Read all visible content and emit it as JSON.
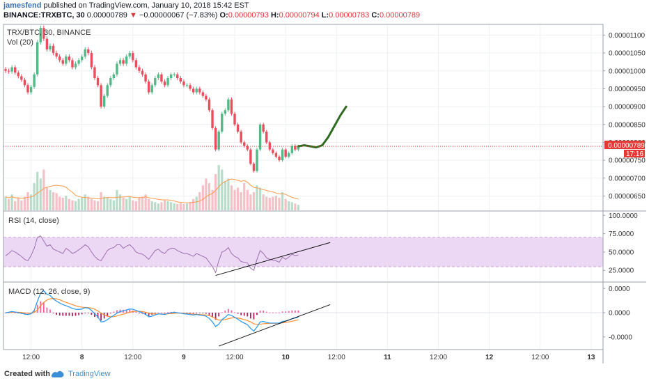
{
  "header": {
    "author": "jamesfend",
    "published_text": "published on TradingView.com, January 10, 2018 15:42 EST",
    "symbol": "BINANCE:TRXBTC, 30",
    "last": "0.00000789",
    "change_arrow": "▼",
    "change": "−0.00000067 (−7.83%)",
    "o_label": "O:",
    "o_val": "0.00000793",
    "h_label": "H:",
    "h_val": "0.00000794",
    "l_label": "L:",
    "l_val": "0.00000783",
    "c_label": "C:",
    "c_val": "0.00000789"
  },
  "chart_data": {
    "type": "candlestick",
    "pane_main": {
      "legend_symbol": "TRX/BTC, 30, BINANCE",
      "legend_volume": "Vol (20)",
      "y_ticks": [
        "0.00001100",
        "0.00001050",
        "0.00001000",
        "0.00000950",
        "0.00000900",
        "0.00000850",
        "0.00000800",
        "0.00000750",
        "0.00000700",
        "0.00000650"
      ],
      "y_tick_values": [
        1.1e-05,
        1.05e-05,
        1e-05,
        9.5e-06,
        9e-06,
        8.5e-06,
        8e-06,
        7.5e-06,
        7e-06,
        6.5e-06
      ],
      "ylim": [
        6.1e-06,
        1.13e-05
      ],
      "last_price_label": "0.00000789",
      "countdown_label": "17:16",
      "last_price": 7.89e-06,
      "closes": [
        1e-05,
        9.98e-06,
        1.01e-05,
        9.95e-06,
        9.85e-06,
        9.75e-06,
        9.6e-06,
        9.4e-06,
        9.55e-06,
        9.9e-06,
        1.08e-05,
        1.12e-05,
        1.09e-05,
        1.06e-05,
        1.07e-05,
        1.05e-05,
        1.04e-05,
        1.03e-05,
        1.02e-05,
        1.04e-05,
        1.03e-05,
        1.01e-05,
        1.02e-05,
        1.03e-05,
        1.04e-05,
        1.06e-05,
        1.05e-05,
        1.01e-05,
        9.8e-06,
        9.6e-06,
        9e-06,
        9.3e-06,
        9.6e-06,
        9.8e-06,
        9.9e-06,
        1.02e-05,
        1.03e-05,
        1.02e-05,
        1.04e-05,
        1.05e-05,
        1.03e-05,
        1.01e-05,
        1e-05,
        9.9e-06,
        9.7e-06,
        9.4e-06,
        9.6e-06,
        9.8e-06,
        9.9e-06,
        9.7e-06,
        9.6e-06,
        9.8e-06,
        9.9e-06,
        9.9e-06,
        9.8e-06,
        9.7e-06,
        9.6e-06,
        9.6e-06,
        9.5e-06,
        9.4e-06,
        9.5e-06,
        9.4e-06,
        9.3e-06,
        9.2e-06,
        8.9e-06,
        8.4e-06,
        7.8e-06,
        8.3e-06,
        8.8e-06,
        8.9e-06,
        9.2e-06,
        8.8e-06,
        8.5e-06,
        8.3e-06,
        8e-06,
        7.9e-06,
        7.8e-06,
        7.4e-06,
        7.2e-06,
        7.8e-06,
        8.5e-06,
        8.3e-06,
        8e-06,
        7.8e-06,
        7.7e-06,
        7.6e-06,
        7.5e-06,
        7.8e-06,
        7.6e-06,
        7.7e-06,
        7.9e-06,
        7.8e-06,
        7.89e-06
      ],
      "volumes": [
        30,
        25,
        35,
        20,
        28,
        22,
        30,
        40,
        35,
        60,
        85,
        70,
        90,
        50,
        45,
        40,
        38,
        30,
        28,
        32,
        25,
        22,
        20,
        25,
        28,
        35,
        30,
        25,
        22,
        20,
        40,
        30,
        28,
        25,
        22,
        45,
        35,
        28,
        25,
        30,
        22,
        20,
        28,
        30,
        35,
        25,
        20,
        18,
        15,
        18,
        22,
        20,
        18,
        15,
        14,
        16,
        14,
        15,
        18,
        25,
        30,
        40,
        55,
        70,
        60,
        45,
        80,
        100,
        90,
        65,
        70,
        55,
        45,
        50,
        40,
        60,
        45,
        35,
        40,
        55,
        50,
        35,
        30,
        28,
        30,
        32,
        28,
        40,
        25,
        20,
        18,
        15,
        12
      ],
      "projection": [
        7.89e-06,
        7.92e-06,
        7.89e-06,
        7.86e-06,
        7.92e-06,
        8.15e-06,
        8.45e-06,
        8.75e-06,
        9e-06
      ]
    },
    "pane_rsi": {
      "legend": "RSI (14, close)",
      "y_ticks": [
        "100.0000",
        "75.0000",
        "50.0000",
        "25.0000"
      ],
      "y_tick_values": [
        100,
        75,
        50,
        25
      ],
      "ylim": [
        10,
        105
      ],
      "band": [
        30,
        70
      ],
      "values": [
        45,
        48,
        52,
        50,
        47,
        44,
        40,
        38,
        45,
        55,
        70,
        72,
        65,
        58,
        60,
        54,
        52,
        50,
        48,
        55,
        52,
        48,
        50,
        53,
        56,
        60,
        57,
        50,
        44,
        40,
        38,
        45,
        52,
        55,
        56,
        60,
        60,
        55,
        58,
        60,
        56,
        50,
        48,
        47,
        44,
        40,
        46,
        52,
        54,
        50,
        48,
        53,
        55,
        55,
        52,
        50,
        48,
        48,
        46,
        44,
        48,
        46,
        44,
        42,
        36,
        30,
        22,
        38,
        50,
        52,
        56,
        48,
        44,
        42,
        37,
        36,
        35,
        28,
        25,
        40,
        52,
        48,
        42,
        40,
        39,
        38,
        36,
        43,
        40,
        43,
        47,
        45,
        46
      ],
      "trendline": {
        "x_from": 66,
        "y_from": 18,
        "x_to": 102,
        "y_to": 63
      }
    },
    "pane_macd": {
      "legend": "MACD (12, 26, close, 9)",
      "y_ticks": [
        "0.0000",
        "0.0000",
        "-0.0000"
      ],
      "y_tick_values": [
        1,
        0,
        -1
      ],
      "ylim": [
        -1.6,
        1.3
      ],
      "macd": [
        0,
        0.02,
        0.05,
        0.03,
        0,
        -0.03,
        -0.06,
        -0.08,
        -0.05,
        0.1,
        0.5,
        0.85,
        0.95,
        0.8,
        0.75,
        0.6,
        0.5,
        0.42,
        0.35,
        0.3,
        0.25,
        0.18,
        0.15,
        0.14,
        0.16,
        0.22,
        0.2,
        0.1,
        -0.05,
        -0.18,
        -0.4,
        -0.38,
        -0.3,
        -0.2,
        -0.12,
        -0.02,
        0.05,
        0.08,
        0.12,
        0.16,
        0.15,
        0.1,
        0.05,
        0,
        -0.08,
        -0.18,
        -0.15,
        -0.1,
        -0.05,
        -0.06,
        -0.08,
        -0.03,
        0,
        0.02,
        0,
        -0.02,
        -0.05,
        -0.06,
        -0.08,
        -0.1,
        -0.08,
        -0.1,
        -0.12,
        -0.15,
        -0.25,
        -0.4,
        -0.6,
        -0.5,
        -0.3,
        -0.2,
        -0.08,
        -0.12,
        -0.2,
        -0.28,
        -0.38,
        -0.45,
        -0.52,
        -0.68,
        -0.8,
        -0.62,
        -0.4,
        -0.38,
        -0.42,
        -0.45,
        -0.45,
        -0.45,
        -0.45,
        -0.38,
        -0.36,
        -0.32,
        -0.26,
        -0.23,
        -0.2
      ],
      "signal": [
        0,
        0.01,
        0.02,
        0.02,
        0.02,
        0.01,
        -0.01,
        -0.03,
        -0.03,
        0.01,
        0.12,
        0.3,
        0.45,
        0.55,
        0.6,
        0.62,
        0.6,
        0.56,
        0.5,
        0.45,
        0.4,
        0.35,
        0.3,
        0.26,
        0.24,
        0.23,
        0.22,
        0.2,
        0.15,
        0.08,
        -0.02,
        -0.1,
        -0.15,
        -0.18,
        -0.17,
        -0.14,
        -0.1,
        -0.06,
        -0.02,
        0.02,
        0.05,
        0.06,
        0.06,
        0.05,
        0.02,
        -0.02,
        -0.05,
        -0.06,
        -0.06,
        -0.06,
        -0.06,
        -0.05,
        -0.04,
        -0.03,
        -0.02,
        -0.02,
        -0.03,
        -0.04,
        -0.05,
        -0.06,
        -0.07,
        -0.08,
        -0.09,
        -0.1,
        -0.13,
        -0.18,
        -0.26,
        -0.32,
        -0.32,
        -0.3,
        -0.26,
        -0.23,
        -0.22,
        -0.23,
        -0.26,
        -0.3,
        -0.34,
        -0.4,
        -0.48,
        -0.51,
        -0.5,
        -0.48,
        -0.47,
        -0.46,
        -0.46,
        -0.46,
        -0.46,
        -0.44,
        -0.42,
        -0.4,
        -0.37,
        -0.34,
        -0.31
      ],
      "trendline": {
        "x_from": 67,
        "y_from": -1.45,
        "x_to": 102,
        "y_to": 0.35
      }
    },
    "x_ticks": [
      {
        "label": "12:00",
        "bar": 8
      },
      {
        "label": "8",
        "bar": 24
      },
      {
        "label": "12:00",
        "bar": 40
      },
      {
        "label": "9",
        "bar": 56
      },
      {
        "label": "12:00",
        "bar": 72
      },
      {
        "label": "10",
        "bar": 88
      },
      {
        "label": "12:00",
        "bar": 104
      },
      {
        "label": "11",
        "bar": 120
      },
      {
        "label": "12:00",
        "bar": 136
      },
      {
        "label": "12",
        "bar": 152
      },
      {
        "label": "12:00",
        "bar": 168
      },
      {
        "label": "13",
        "bar": 184
      }
    ],
    "colors": {
      "up": "#53b987",
      "down": "#eb4d5c",
      "projection": "#2e6b1f",
      "ma": "#ff9a4a",
      "rsi": "#9c6fb0",
      "rsi_band": "#ecd8f5",
      "macd": "#2196f3",
      "signal": "#ff8c2f",
      "price_line": "#e53935"
    }
  },
  "footer": {
    "created_with": "Created with",
    "brand": "TradingView"
  }
}
